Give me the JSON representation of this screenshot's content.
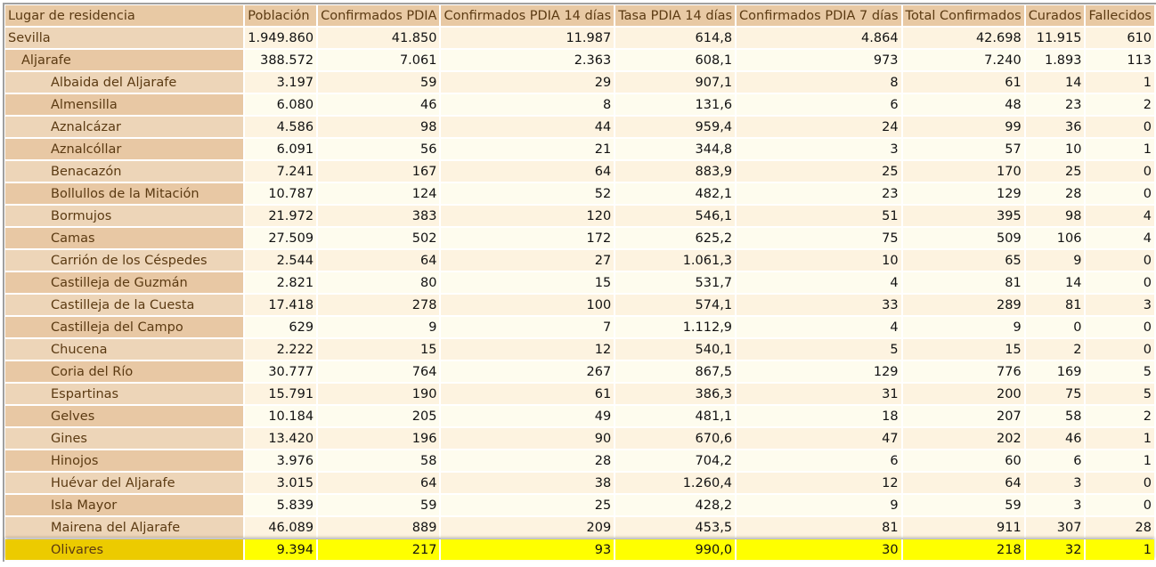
{
  "table": {
    "headers": [
      "Lugar de residencia",
      "Población",
      "Confirmados PDIA",
      "Confirmados PDIA 14 días",
      "Tasa PDIA 14 días",
      "Confirmados PDIA 7 días",
      "Total Confirmados",
      "Curados",
      "Fallecidos"
    ],
    "selected_row": "Olivares",
    "rows": [
      {
        "level": 0,
        "name": "Sevilla",
        "values": [
          "1.949.860",
          "41.850",
          "11.987",
          "614,8",
          "4.864",
          "42.698",
          "11.915",
          "610"
        ]
      },
      {
        "level": 1,
        "name": "Aljarafe",
        "values": [
          "388.572",
          "7.061",
          "2.363",
          "608,1",
          "973",
          "7.240",
          "1.893",
          "113"
        ]
      },
      {
        "level": 2,
        "name": "Albaida del Aljarafe",
        "values": [
          "3.197",
          "59",
          "29",
          "907,1",
          "8",
          "61",
          "14",
          "1"
        ]
      },
      {
        "level": 2,
        "name": "Almensilla",
        "values": [
          "6.080",
          "46",
          "8",
          "131,6",
          "6",
          "48",
          "23",
          "2"
        ]
      },
      {
        "level": 2,
        "name": "Aznalcázar",
        "values": [
          "4.586",
          "98",
          "44",
          "959,4",
          "24",
          "99",
          "36",
          "0"
        ]
      },
      {
        "level": 2,
        "name": "Aznalcóllar",
        "values": [
          "6.091",
          "56",
          "21",
          "344,8",
          "3",
          "57",
          "10",
          "1"
        ]
      },
      {
        "level": 2,
        "name": "Benacazón",
        "values": [
          "7.241",
          "167",
          "64",
          "883,9",
          "25",
          "170",
          "25",
          "0"
        ]
      },
      {
        "level": 2,
        "name": "Bollullos de la Mitación",
        "values": [
          "10.787",
          "124",
          "52",
          "482,1",
          "23",
          "129",
          "28",
          "0"
        ]
      },
      {
        "level": 2,
        "name": "Bormujos",
        "values": [
          "21.972",
          "383",
          "120",
          "546,1",
          "51",
          "395",
          "98",
          "4"
        ]
      },
      {
        "level": 2,
        "name": "Camas",
        "values": [
          "27.509",
          "502",
          "172",
          "625,2",
          "75",
          "509",
          "106",
          "4"
        ]
      },
      {
        "level": 2,
        "name": "Carrión de los Céspedes",
        "values": [
          "2.544",
          "64",
          "27",
          "1.061,3",
          "10",
          "65",
          "9",
          "0"
        ]
      },
      {
        "level": 2,
        "name": "Castilleja de Guzmán",
        "values": [
          "2.821",
          "80",
          "15",
          "531,7",
          "4",
          "81",
          "14",
          "0"
        ]
      },
      {
        "level": 2,
        "name": "Castilleja de la Cuesta",
        "values": [
          "17.418",
          "278",
          "100",
          "574,1",
          "33",
          "289",
          "81",
          "3"
        ]
      },
      {
        "level": 2,
        "name": "Castilleja del Campo",
        "values": [
          "629",
          "9",
          "7",
          "1.112,9",
          "4",
          "9",
          "0",
          "0"
        ]
      },
      {
        "level": 2,
        "name": "Chucena",
        "values": [
          "2.222",
          "15",
          "12",
          "540,1",
          "5",
          "15",
          "2",
          "0"
        ]
      },
      {
        "level": 2,
        "name": "Coria del Río",
        "values": [
          "30.777",
          "764",
          "267",
          "867,5",
          "129",
          "776",
          "169",
          "5"
        ]
      },
      {
        "level": 2,
        "name": "Espartinas",
        "values": [
          "15.791",
          "190",
          "61",
          "386,3",
          "31",
          "200",
          "75",
          "5"
        ]
      },
      {
        "level": 2,
        "name": "Gelves",
        "values": [
          "10.184",
          "205",
          "49",
          "481,1",
          "18",
          "207",
          "58",
          "2"
        ]
      },
      {
        "level": 2,
        "name": "Gines",
        "values": [
          "13.420",
          "196",
          "90",
          "670,6",
          "47",
          "202",
          "46",
          "1"
        ]
      },
      {
        "level": 2,
        "name": "Hinojos",
        "values": [
          "3.976",
          "58",
          "28",
          "704,2",
          "6",
          "60",
          "6",
          "1"
        ]
      },
      {
        "level": 2,
        "name": "Huévar del Aljarafe",
        "values": [
          "3.015",
          "64",
          "38",
          "1.260,4",
          "12",
          "64",
          "3",
          "0"
        ]
      },
      {
        "level": 2,
        "name": "Isla Mayor",
        "values": [
          "5.839",
          "59",
          "25",
          "428,2",
          "9",
          "59",
          "3",
          "0"
        ]
      },
      {
        "level": 2,
        "name": "Mairena del Aljarafe",
        "values": [
          "46.089",
          "889",
          "209",
          "453,5",
          "81",
          "911",
          "307",
          "28"
        ]
      },
      {
        "level": 2,
        "name": "Olivares",
        "values": [
          "9.394",
          "217",
          "93",
          "990,0",
          "30",
          "218",
          "32",
          "1"
        ]
      }
    ]
  }
}
